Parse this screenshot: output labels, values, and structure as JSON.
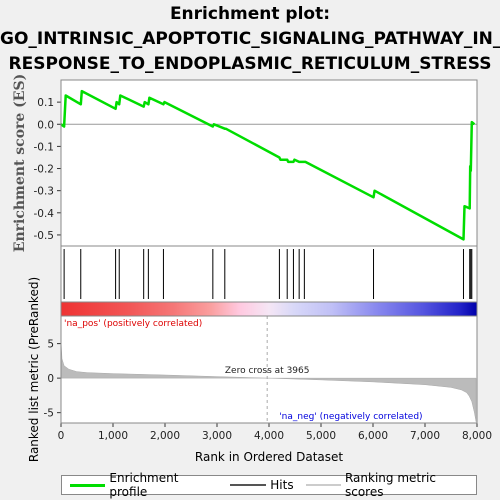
{
  "title_line1": "Enrichment plot:",
  "title_line2": "GO_INTRINSIC_APOPTOTIC_SIGNALING_PATHWAY_IN_",
  "title_line3": "RESPONSE_TO_ENDOPLASMIC_RETICULUM_STRESS",
  "chart_data": [
    {
      "type": "line",
      "name": "enrichment",
      "ylabel": "Enrichment score (ES)",
      "xlim": [
        0,
        8000
      ],
      "ylim": [
        -0.55,
        0.2
      ],
      "yticks": [
        0.1,
        0.0,
        -0.1,
        -0.2,
        -0.3,
        -0.4,
        -0.5
      ],
      "ytick_labels": [
        "0.1",
        "0.0",
        "-0.1",
        "-0.2",
        "-0.3",
        "-0.4",
        "-0.5"
      ],
      "series": [
        {
          "name": "Enrichment profile",
          "color": "#00dd00",
          "x": [
            0,
            60,
            90,
            380,
            400,
            1050,
            1070,
            1120,
            1140,
            1590,
            1610,
            1680,
            1700,
            1970,
            1990,
            2920,
            2940,
            3150,
            3170,
            4200,
            4220,
            4350,
            4370,
            4470,
            4490,
            4580,
            4600,
            4680,
            4700,
            6010,
            6030,
            7740,
            7760,
            7860,
            7870,
            7880,
            7900,
            7950
          ],
          "y": [
            0.0,
            -0.01,
            0.13,
            0.09,
            0.15,
            0.07,
            0.1,
            0.09,
            0.13,
            0.08,
            0.1,
            0.09,
            0.12,
            0.09,
            0.1,
            -0.01,
            0.0,
            -0.02,
            -0.02,
            -0.15,
            -0.16,
            -0.16,
            -0.17,
            -0.17,
            -0.16,
            -0.17,
            -0.17,
            -0.17,
            -0.17,
            -0.33,
            -0.3,
            -0.52,
            -0.37,
            -0.38,
            -0.19,
            -0.21,
            0.01,
            0.0
          ]
        }
      ]
    },
    {
      "type": "hits",
      "name": "Hits",
      "x": [
        60,
        380,
        1050,
        1120,
        1590,
        1680,
        1970,
        2920,
        3150,
        4200,
        4350,
        4470,
        4580,
        4680,
        6010,
        7740,
        7860,
        7880,
        7900
      ]
    },
    {
      "type": "area",
      "name": "Ranking metric scores",
      "ylabel": "Ranked list metric (PreRanked)",
      "xlabel": "Rank in Ordered Dataset",
      "xlim": [
        0,
        8000
      ],
      "ylim": [
        -6.5,
        9
      ],
      "yticks": [
        5,
        0,
        -5
      ],
      "ytick_labels": [
        "5",
        "0",
        "-5"
      ],
      "xticks": [
        0,
        1000,
        2000,
        3000,
        4000,
        5000,
        6000,
        7000,
        8000
      ],
      "xtick_labels": [
        "0",
        "1,000",
        "2,000",
        "3,000",
        "4,000",
        "5,000",
        "6,000",
        "7,000",
        "8,000"
      ],
      "zero_cross": 3965,
      "zero_cross_label": "Zero cross at 3965",
      "pos_label": "'na_pos' (positively correlated)",
      "neg_label": "'na_neg' (negatively correlated)",
      "pos_color": "#dd0000",
      "neg_color": "#0000dd",
      "x": [
        0,
        20,
        60,
        150,
        300,
        500,
        1000,
        2000,
        3000,
        3965,
        5000,
        6000,
        7000,
        7500,
        7700,
        7800,
        7850,
        7900,
        7950,
        7980
      ],
      "values": [
        5.5,
        2.8,
        1.8,
        1.3,
        0.95,
        0.8,
        0.65,
        0.45,
        0.22,
        0.0,
        -0.25,
        -0.55,
        -0.95,
        -1.35,
        -1.7,
        -2.1,
        -2.6,
        -3.4,
        -5.0,
        -6.3
      ]
    }
  ],
  "legend": {
    "profile_label": "Enrichment profile",
    "hits_label": "Hits",
    "metric_label": "Ranking metric scores"
  }
}
